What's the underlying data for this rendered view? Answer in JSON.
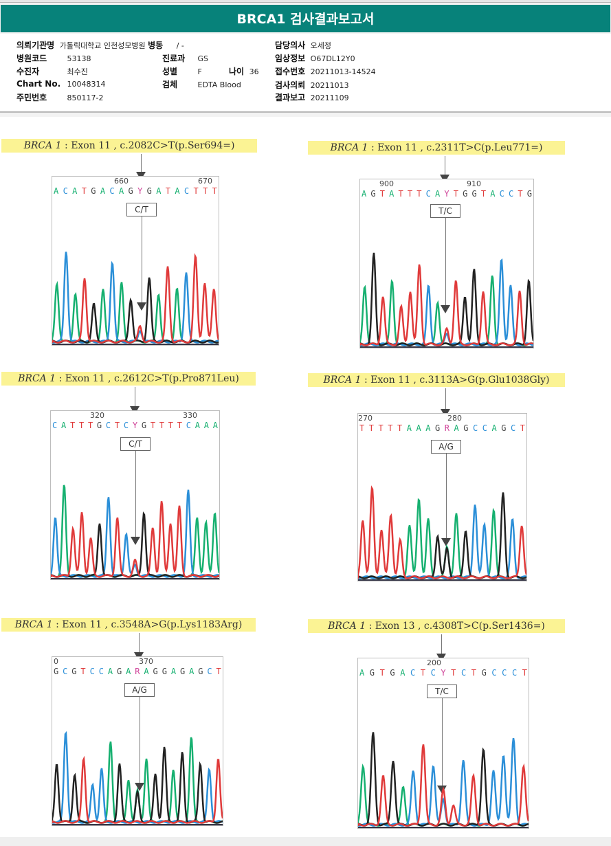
{
  "title": "BRCA1 검사결과보고서",
  "header": {
    "institution": {
      "label": "의뢰기관명",
      "value": "가톨릭대학교 인천성모병원"
    },
    "ward": {
      "label": "병동",
      "value": "/ -"
    },
    "doctor": {
      "label": "담당의사",
      "value": "오세정"
    },
    "hospital_code": {
      "label": "병원코드",
      "value": "53138"
    },
    "department": {
      "label": "진료과",
      "value": "GS"
    },
    "clinical_info": {
      "label": "임상정보",
      "value": "O67DL12Y0"
    },
    "patient": {
      "label": "수진자",
      "value": "최수진"
    },
    "sex": {
      "label": "성별",
      "value": "F"
    },
    "age": {
      "label": "나이",
      "value": "36"
    },
    "receipt_no": {
      "label": "접수번호",
      "value": "20211013-14524"
    },
    "chart_no": {
      "label": "Chart No.",
      "value": "10048314"
    },
    "specimen": {
      "label": "검체",
      "value": "EDTA Blood"
    },
    "request_date": {
      "label": "검사의뢰",
      "value": "20211013"
    },
    "resident_no": {
      "label": "주민번호",
      "value": "850117-2"
    },
    "report_date": {
      "label": "결과보고",
      "value": "20211109"
    }
  },
  "colors": {
    "A": "#16b070",
    "C": "#2b8fd8",
    "G": "#444444",
    "T": "#e03a3a",
    "Y": "#d0459a",
    "R": "#d0459a",
    "title_bar": "#07827a",
    "highlight": "#fbf394"
  },
  "variants": [
    {
      "gene": "BRCA 1",
      "desc": " : Exon 11 , c.2082C>T(p.Ser694=)",
      "pos_labels": [
        "660",
        "670"
      ],
      "sequence": "ACATGACAGYGATACTTT",
      "call": "C/T",
      "het_index": 9
    },
    {
      "gene": "BRCA 1",
      "desc": " : Exon 11 , c.2311T>C(p.Leu771=)",
      "pos_labels": [
        "900",
        "910"
      ],
      "sequence": "AGTATTTCAYTGGTACCTG",
      "call": "T/C",
      "het_index": 9
    },
    {
      "gene": "BRCA 1",
      "desc": " : Exon 11 , c.2612C>T(p.Pro871Leu)",
      "pos_labels": [
        "320",
        "330"
      ],
      "sequence": "CATTTGCTCYGTTTTCAAA",
      "call": "C/T",
      "het_index": 9
    },
    {
      "gene": "BRCA 1",
      "desc": " : Exon 11 , c.3113A>G(p.Glu1038Gly)",
      "pos_labels": [
        "270",
        "280"
      ],
      "sequence": "TTTTTAAAGRAGCCAGCT",
      "call": "A/G",
      "het_index": 9
    },
    {
      "gene": "BRCA 1",
      "desc": " : Exon 11 , c.3548A>G(p.Lys1183Arg)",
      "pos_labels": [
        "0",
        "370"
      ],
      "sequence": "GCGTCCAGARAGGAGAGCT",
      "call": "A/G",
      "het_index": 9
    },
    {
      "gene": "BRCA 1",
      "desc": " : Exon 13 , c.4308T>C(p.Ser1436=)",
      "pos_labels": [
        "200"
      ],
      "sequence": "AGTGACTCYTCTGCCCT",
      "call": "T/C",
      "het_index": 8
    }
  ]
}
